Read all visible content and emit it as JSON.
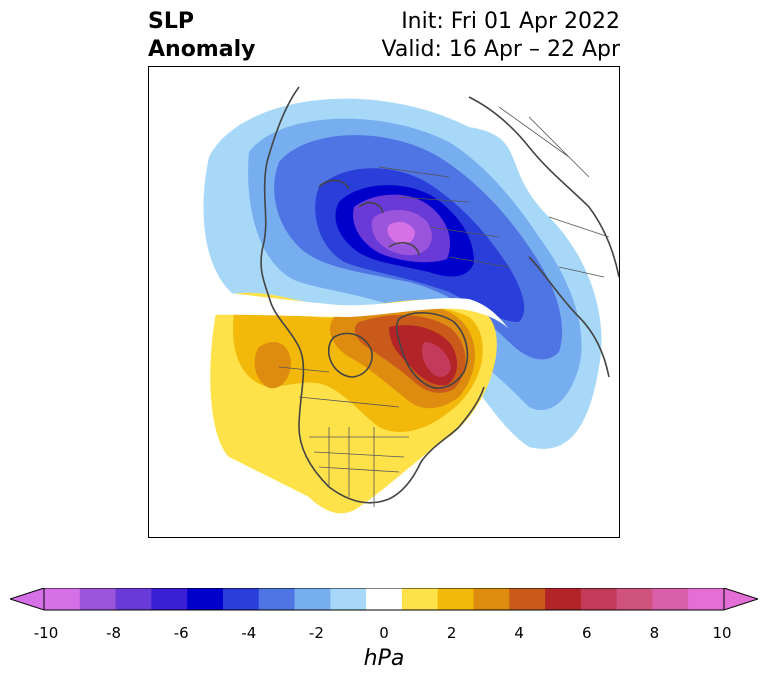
{
  "header": {
    "variable_line1": "SLP",
    "variable_line2": "Anomaly",
    "init": "Init: Fri 01 Apr 2022",
    "valid": "Valid: 16 Apr – 22 Apr"
  },
  "colorbar": {
    "unit": "hPa",
    "ticks": [
      "-10",
      "-8",
      "-6",
      "-4",
      "-2",
      "0",
      "2",
      "4",
      "6",
      "8",
      "10"
    ],
    "extend": "both",
    "colors": [
      "#d570e6",
      "#9b55dc",
      "#6a3ad8",
      "#3a1fd6",
      "#0000cc",
      "#2a3ed9",
      "#4f74e3",
      "#77aef0",
      "#a8d8f8",
      "#ffffff",
      "#ffe24a",
      "#f2b90a",
      "#dd8c10",
      "#c95a1a",
      "#b32428",
      "#c43a5a",
      "#d0537e",
      "#d95fa9",
      "#e36fd6"
    ],
    "extend_low_color": "#d570e6",
    "extend_high_color": "#e36fd6"
  },
  "map": {
    "region": "North America and Arctic, north polar view",
    "features": [
      {
        "name": "negative anomaly over Arctic / northern Eurasia",
        "peak_hpa": -10
      },
      {
        "name": "positive anomaly over Greenland",
        "peak_hpa": 8
      },
      {
        "name": "positive anomaly over NE Pacific and western North America",
        "peak_hpa": 4
      }
    ]
  }
}
